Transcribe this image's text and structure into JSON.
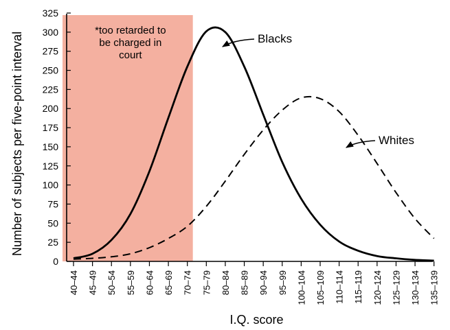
{
  "chart_data": {
    "type": "line",
    "xlabel": "I.Q. score",
    "ylabel": "Number of subjects per five-point interval",
    "ylim": [
      0,
      325
    ],
    "yticks": [
      0,
      25,
      50,
      75,
      100,
      125,
      150,
      175,
      200,
      225,
      250,
      275,
      300,
      325
    ],
    "categories": [
      "40–44",
      "45–49",
      "50–54",
      "55–59",
      "60–64",
      "65–69",
      "70–74",
      "75–79",
      "80–84",
      "85–89",
      "90–94",
      "95–99",
      "100–104",
      "105–109",
      "110–114",
      "115–119",
      "120–124",
      "125–129",
      "130–134",
      "135–139"
    ],
    "series": [
      {
        "name": "Blacks",
        "line_style": "solid",
        "values": [
          4,
          10,
          28,
          62,
          118,
          188,
          255,
          301,
          300,
          255,
          192,
          130,
          82,
          48,
          26,
          14,
          7,
          4,
          2,
          1
        ]
      },
      {
        "name": "Whites",
        "line_style": "dashed",
        "values": [
          3,
          4,
          6,
          10,
          18,
          30,
          46,
          72,
          105,
          140,
          172,
          198,
          214,
          213,
          196,
          165,
          128,
          90,
          56,
          30
        ]
      }
    ],
    "highlight": {
      "from_category": "40–44",
      "to_category": "70–74",
      "color": "#f4b0a0",
      "note": "*too retarded to be charged in court"
    },
    "annotations": [
      {
        "series": "Blacks",
        "text": "Blacks"
      },
      {
        "series": "Whites",
        "text": "Whites"
      }
    ],
    "grid": false
  }
}
